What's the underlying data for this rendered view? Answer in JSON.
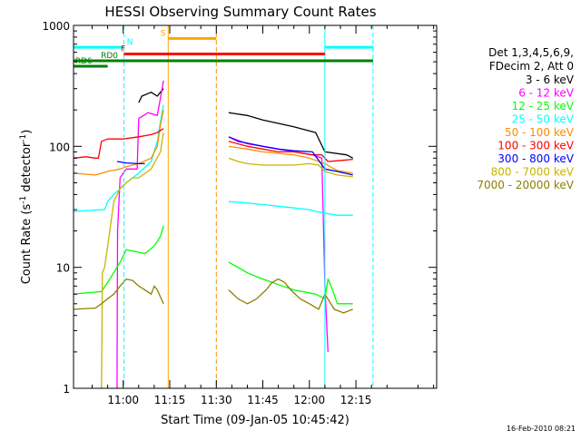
{
  "chart_data": {
    "type": "line",
    "title": "HESSI Observing Summary Count Rates",
    "xlabel": "Start Time (09-Jan-05 10:45:42)",
    "ylabel_main": "Count Rate (s",
    "ylabel_sup1": "-1",
    "ylabel_mid": " detector",
    "ylabel_sup2": "-1",
    "ylabel_end": ")",
    "footer_date": "16-Feb-2010 08:21",
    "yscale": "log",
    "ylim": [
      1,
      1000
    ],
    "xlim_minutes": [
      -1.0,
      116.0
    ],
    "x_ticks": [
      {
        "label": "11:00",
        "min": 15
      },
      {
        "label": "11:15",
        "min": 30
      },
      {
        "label": "11:30",
        "min": 45
      },
      {
        "label": "11:45",
        "min": 60
      },
      {
        "label": "12:00",
        "min": 75
      },
      {
        "label": "12:15",
        "min": 90
      }
    ],
    "y_ticks": [
      {
        "label": "1",
        "value": 1
      },
      {
        "label": "10",
        "value": 10
      },
      {
        "label": "100",
        "value": 100
      },
      {
        "label": "1000",
        "value": 1000
      }
    ],
    "legend_header": [
      "Det 1,3,4,5,6,9,",
      "FDecim 2, Att 0"
    ],
    "series": [
      {
        "name": "3 - 6 keV",
        "color": "#000000",
        "segments": [
          [
            [
              20,
              230
            ],
            [
              21,
              260
            ],
            [
              24,
              280
            ],
            [
              26,
              260
            ],
            [
              27,
              280
            ],
            [
              28,
              300
            ]
          ],
          [
            [
              49,
              190
            ],
            [
              55,
              180
            ],
            [
              60,
              165
            ],
            [
              65,
              155
            ],
            [
              70,
              145
            ],
            [
              77,
              130
            ],
            [
              80,
              90
            ],
            [
              87,
              85
            ],
            [
              89,
              80
            ]
          ]
        ]
      },
      {
        "name": "6 - 12 keV",
        "color": "#ff00ff",
        "segments": [
          [
            [
              13,
              1
            ],
            [
              13.2,
              20
            ],
            [
              14,
              55
            ],
            [
              15,
              60
            ],
            [
              16,
              65
            ],
            [
              17,
              65
            ],
            [
              18,
              65
            ],
            [
              19,
              65
            ],
            [
              19.5,
              65
            ],
            [
              20,
              170
            ],
            [
              23,
              190
            ],
            [
              26,
              180
            ],
            [
              27,
              250
            ],
            [
              28,
              350
            ]
          ],
          [
            [
              49,
              120
            ],
            [
              55,
              105
            ],
            [
              60,
              100
            ],
            [
              65,
              95
            ],
            [
              70,
              90
            ],
            [
              76,
              85
            ],
            [
              79,
              80
            ],
            [
              80,
              7
            ],
            [
              81,
              2
            ]
          ]
        ]
      },
      {
        "name": "12 - 25 keV",
        "color": "#00ff00",
        "segments": [
          [
            [
              -1,
              6
            ],
            [
              8,
              6.3
            ],
            [
              10,
              7.5
            ],
            [
              13,
              10
            ],
            [
              14,
              11
            ],
            [
              16,
              14
            ],
            [
              22,
              13
            ],
            [
              25,
              15
            ],
            [
              27,
              18
            ],
            [
              28,
              22
            ]
          ],
          [
            [
              49,
              11
            ],
            [
              52,
              10
            ],
            [
              55,
              9
            ],
            [
              60,
              8
            ],
            [
              65,
              7.2
            ],
            [
              70,
              6.5
            ],
            [
              77,
              6
            ],
            [
              80,
              5.5
            ],
            [
              81,
              8
            ],
            [
              82,
              7
            ],
            [
              84,
              5
            ],
            [
              89,
              5
            ]
          ]
        ]
      },
      {
        "name": "25 - 50 keV",
        "color": "#00ffff",
        "segments": [
          [
            [
              -1,
              29
            ],
            [
              8,
              30
            ],
            [
              9,
              30
            ],
            [
              10,
              35
            ],
            [
              12,
              40
            ],
            [
              16,
              50
            ],
            [
              20,
              60
            ],
            [
              24,
              75
            ],
            [
              26,
              110
            ],
            [
              27,
              160
            ],
            [
              28,
              220
            ]
          ],
          [
            [
              49,
              35
            ],
            [
              55,
              34
            ],
            [
              60,
              33
            ],
            [
              65,
              32
            ],
            [
              70,
              31
            ],
            [
              75,
              30
            ],
            [
              77,
              29
            ],
            [
              80,
              28
            ],
            [
              84,
              27
            ],
            [
              89,
              27
            ]
          ]
        ]
      },
      {
        "name": "50 - 100 keV",
        "color": "#ff8c00",
        "segments": [
          [
            [
              -1,
              60
            ],
            [
              6,
              58
            ],
            [
              10,
              62
            ],
            [
              14,
              65
            ],
            [
              16,
              68
            ],
            [
              20,
              72
            ],
            [
              24,
              80
            ],
            [
              26,
              100
            ],
            [
              27,
              150
            ],
            [
              28,
              200
            ]
          ],
          [
            [
              49,
              100
            ],
            [
              55,
              95
            ],
            [
              60,
              90
            ],
            [
              66,
              87
            ],
            [
              70,
              85
            ],
            [
              75,
              80
            ],
            [
              80,
              72
            ],
            [
              84,
              63
            ],
            [
              89,
              60
            ]
          ]
        ]
      },
      {
        "name": "100 - 300 keV",
        "color": "#ff0000",
        "segments": [
          [
            [
              -1,
              80
            ],
            [
              3,
              82
            ],
            [
              6,
              80
            ],
            [
              7,
              80
            ],
            [
              8,
              110
            ],
            [
              10,
              115
            ],
            [
              15,
              115
            ],
            [
              20,
              120
            ],
            [
              24,
              125
            ],
            [
              26,
              130
            ],
            [
              28,
              140
            ]
          ],
          [
            [
              49,
              110
            ],
            [
              55,
              100
            ],
            [
              60,
              95
            ],
            [
              65,
              90
            ],
            [
              70,
              90
            ],
            [
              76,
              85
            ],
            [
              79,
              85
            ],
            [
              81,
              75
            ],
            [
              84,
              76
            ],
            [
              89,
              78
            ]
          ]
        ]
      },
      {
        "name": "300 - 800 keV",
        "color": "#0000ff",
        "segments": [
          [
            [
              13,
              75
            ],
            [
              16,
              73
            ],
            [
              20,
              72
            ],
            [
              22,
              72
            ]
          ],
          [
            [
              49,
              120
            ],
            [
              52,
              110
            ],
            [
              56,
              105
            ],
            [
              60,
              100
            ],
            [
              65,
              95
            ],
            [
              70,
              92
            ],
            [
              76,
              90
            ],
            [
              80,
              65
            ],
            [
              84,
              62
            ],
            [
              89,
              58
            ]
          ]
        ]
      },
      {
        "name": "800 - 7000 keV",
        "color": "#c8b400",
        "segments": [
          [
            [
              8,
              1
            ],
            [
              8.3,
              9
            ],
            [
              9,
              10
            ],
            [
              10,
              15
            ],
            [
              12,
              35
            ],
            [
              14,
              45
            ],
            [
              16,
              50
            ],
            [
              18,
              55
            ],
            [
              20,
              55
            ],
            [
              24,
              65
            ],
            [
              27,
              90
            ],
            [
              28,
              130
            ]
          ],
          [
            [
              49,
              80
            ],
            [
              52,
              75
            ],
            [
              55,
              72
            ],
            [
              60,
              70
            ],
            [
              65,
              70
            ],
            [
              70,
              70
            ],
            [
              75,
              72
            ],
            [
              78,
              70
            ],
            [
              80,
              62
            ],
            [
              84,
              58
            ],
            [
              89,
              56
            ]
          ]
        ]
      },
      {
        "name": "7000 - 20000 keV",
        "color": "#8b8000",
        "segments": [
          [
            [
              -1,
              4.5
            ],
            [
              6,
              4.6
            ],
            [
              8,
              5
            ],
            [
              10,
              5.5
            ],
            [
              12,
              6
            ],
            [
              14,
              7
            ],
            [
              16,
              8
            ],
            [
              18,
              7.8
            ],
            [
              20,
              7
            ],
            [
              22,
              6.5
            ],
            [
              24,
              6
            ],
            [
              25,
              7
            ],
            [
              26,
              6.5
            ],
            [
              28,
              5
            ]
          ],
          [
            [
              49,
              6.5
            ],
            [
              52,
              5.5
            ],
            [
              55,
              5
            ],
            [
              58,
              5.5
            ],
            [
              61,
              6.5
            ],
            [
              63,
              7.5
            ],
            [
              65,
              8
            ],
            [
              67,
              7.5
            ],
            [
              69,
              6.5
            ],
            [
              72,
              5.5
            ],
            [
              75,
              5
            ],
            [
              78,
              4.5
            ],
            [
              80,
              6
            ],
            [
              83,
              4.5
            ],
            [
              86,
              4.2
            ],
            [
              89,
              4.5
            ]
          ]
        ]
      }
    ],
    "vlines": [
      {
        "min": -1.0,
        "color": "#00ffff",
        "style": "solid"
      },
      {
        "min": 15.2,
        "color": "#00ffff",
        "style": "dashed"
      },
      {
        "min": 29.5,
        "color": "#ffa500",
        "style": "solid"
      },
      {
        "min": 45.0,
        "color": "#ff8c00",
        "style": "dashed"
      },
      {
        "min": 80.0,
        "color": "#00ffff",
        "style": "solid"
      },
      {
        "min": 95.5,
        "color": "#00ffff",
        "style": "dashed"
      }
    ],
    "status_bars": [
      {
        "label": "N",
        "color": "#00ffff",
        "segments": [
          [
            -1,
            15.2
          ],
          [
            80,
            95.5
          ]
        ],
        "level": 660,
        "label_at": 16.2
      },
      {
        "label": "S",
        "color": "#ffa500",
        "segments": [
          [
            29.5,
            45.0
          ]
        ],
        "level": 780,
        "label_at": 27.0
      },
      {
        "label": "F",
        "color": "#ff0000",
        "segments": [
          [
            15.2,
            80
          ]
        ],
        "level": 580,
        "label_at": 14.2
      },
      {
        "label": "RD0",
        "color": "#008000",
        "segments": [
          [
            -1,
            95.5
          ]
        ],
        "level": 510,
        "label_at": 7.8
      },
      {
        "label": "RD6",
        "color": "#008000",
        "segments": [
          [
            -1,
            10
          ]
        ],
        "level": 460,
        "label_at": -0.5
      }
    ]
  }
}
